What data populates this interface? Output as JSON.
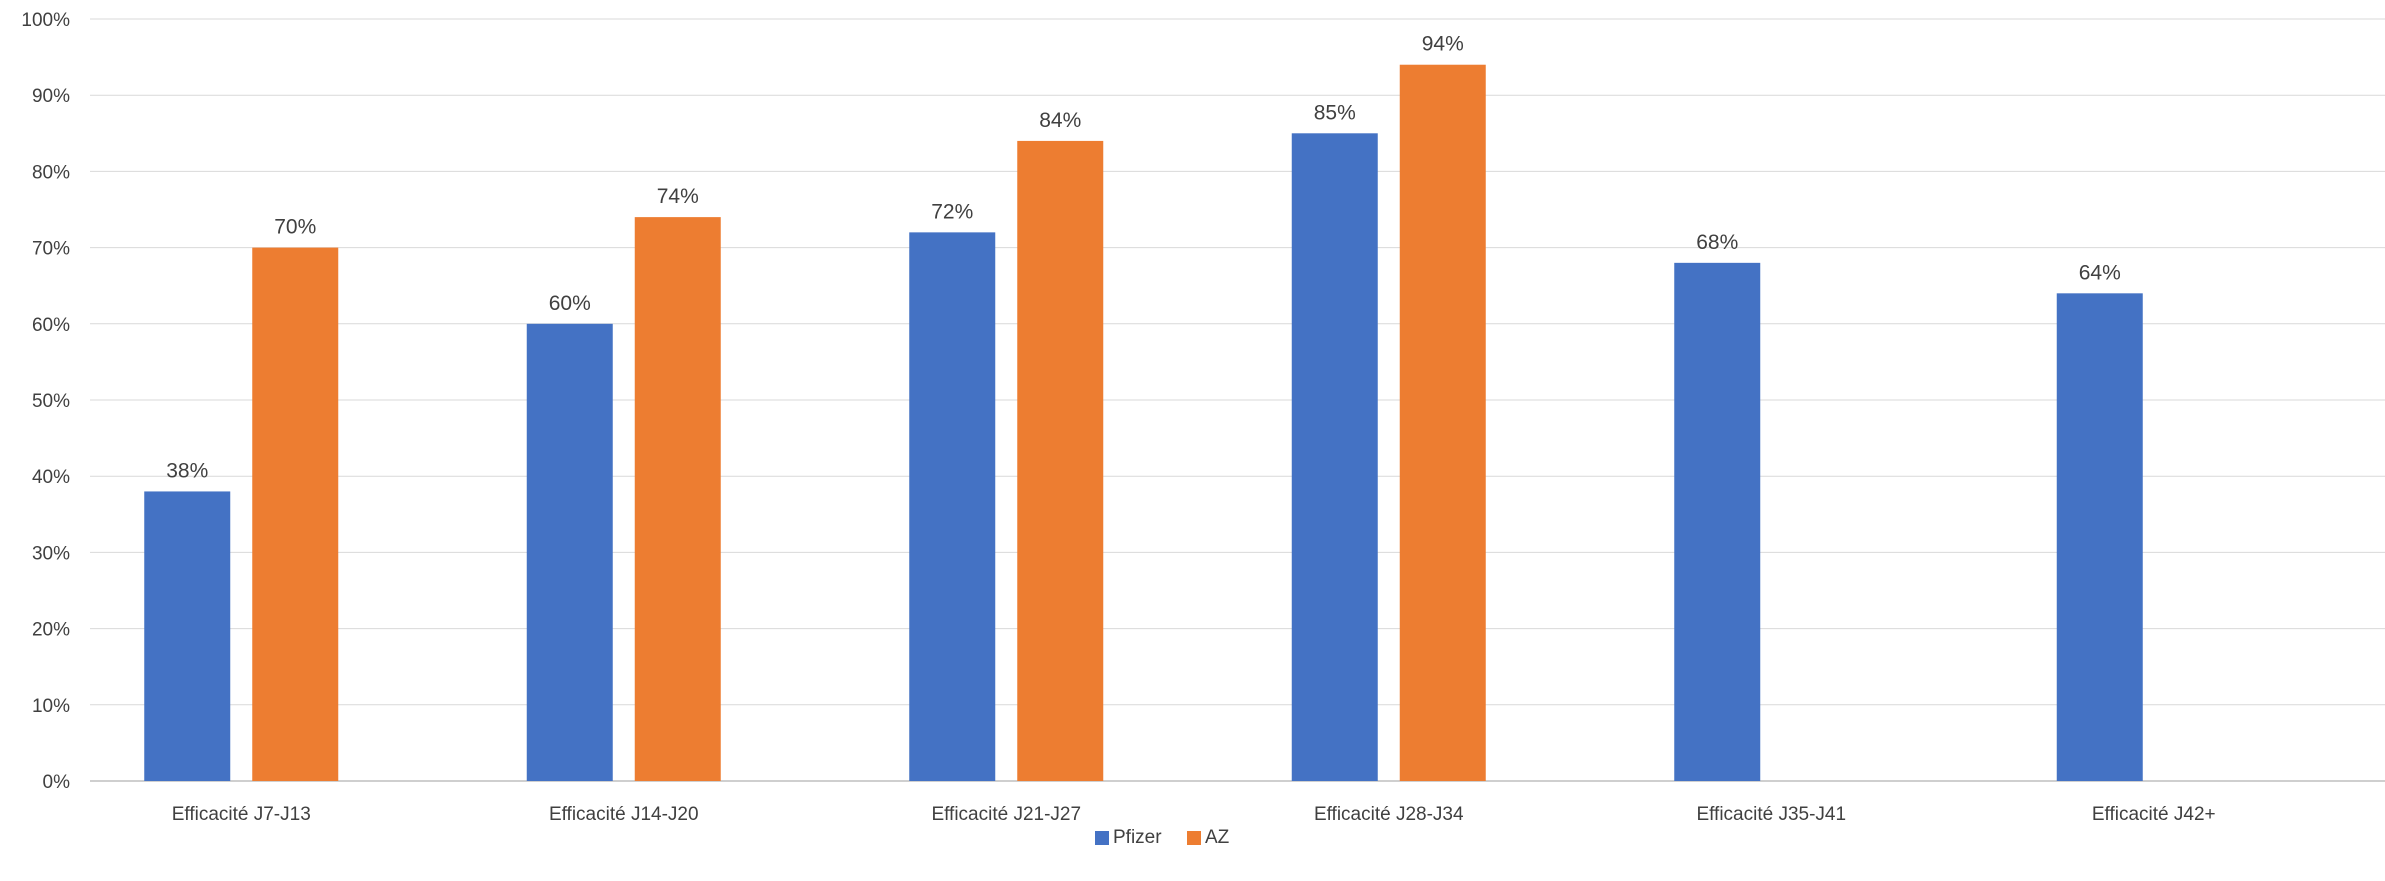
{
  "chart_data": {
    "type": "bar",
    "title": "",
    "xlabel": "",
    "ylabel": "",
    "ylim": [
      0,
      100
    ],
    "y_ticks": [
      0,
      10,
      20,
      30,
      40,
      50,
      60,
      70,
      80,
      90,
      100
    ],
    "y_tick_suffix": "%",
    "grid": true,
    "legend_position": "bottom",
    "categories": [
      "Efficacité J7-J13",
      "Efficacité J14-J20",
      "Efficacité J21-J27",
      "Efficacité J28-J34",
      "Efficacité J35-J41",
      "Efficacité J42+"
    ],
    "series": [
      {
        "name": "Pfizer",
        "color": "#4472C4",
        "values": [
          38,
          60,
          72,
          85,
          68,
          64
        ],
        "labels": [
          "38%",
          "60%",
          "72%",
          "85%",
          "68%",
          "64%"
        ]
      },
      {
        "name": "AZ",
        "color": "#ED7D31",
        "values": [
          70,
          74,
          84,
          94,
          null,
          null
        ],
        "labels": [
          "70%",
          "74%",
          "84%",
          "94%",
          "",
          ""
        ]
      }
    ]
  }
}
